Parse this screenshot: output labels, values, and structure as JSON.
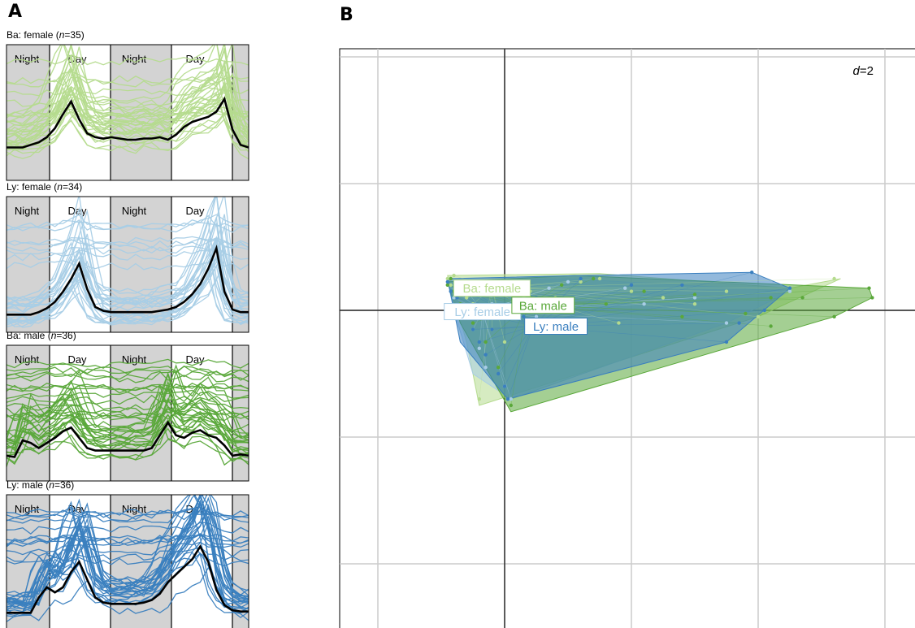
{
  "panels": {
    "a": "A",
    "b": "B"
  },
  "colors": {
    "ba_female": "#b5db8e",
    "ly_female": "#a8cde6",
    "ba_male": "#5aa83a",
    "ly_male": "#3a7fbf",
    "night_fill": "#d3d3d3",
    "mean_line": "#000000",
    "grid": "#cccccc"
  },
  "chart_data": [
    {
      "type": "line",
      "panel": "A",
      "phase_labels": [
        "Night",
        "Day",
        "Night",
        "Day"
      ],
      "subplots": [
        {
          "id": "ba_female",
          "title_prefix": "Ba: female (",
          "n_label": "n",
          "title_suffix": "=35)",
          "color": "#b5db8e",
          "n_lines": 35,
          "mean_profile": [
            0.22,
            0.22,
            0.22,
            0.24,
            0.26,
            0.3,
            0.37,
            0.48,
            0.58,
            0.44,
            0.33,
            0.3,
            0.29,
            0.3,
            0.29,
            0.28,
            0.28,
            0.29,
            0.29,
            0.3,
            0.28,
            0.32,
            0.38,
            0.42,
            0.44,
            0.46,
            0.5,
            0.6,
            0.36,
            0.24,
            0.22
          ]
        },
        {
          "id": "ly_female",
          "title_prefix": "Ly: female (",
          "n_label": "n",
          "title_suffix": "=34)",
          "color": "#a8cde6",
          "n_lines": 34,
          "mean_profile": [
            0.1,
            0.1,
            0.1,
            0.1,
            0.12,
            0.15,
            0.2,
            0.28,
            0.38,
            0.5,
            0.3,
            0.16,
            0.13,
            0.12,
            0.12,
            0.12,
            0.12,
            0.12,
            0.12,
            0.13,
            0.14,
            0.16,
            0.2,
            0.26,
            0.34,
            0.46,
            0.62,
            0.28,
            0.14,
            0.12,
            0.12
          ]
        },
        {
          "id": "ba_male",
          "title_prefix": "Ba: male (",
          "n_label": "n",
          "title_suffix": "=36)",
          "color": "#5aa83a",
          "n_lines": 36,
          "mean_profile": [
            0.16,
            0.15,
            0.28,
            0.26,
            0.22,
            0.26,
            0.3,
            0.35,
            0.38,
            0.3,
            0.22,
            0.2,
            0.2,
            0.2,
            0.2,
            0.2,
            0.2,
            0.2,
            0.22,
            0.32,
            0.42,
            0.32,
            0.3,
            0.34,
            0.36,
            0.32,
            0.3,
            0.24,
            0.16,
            0.17,
            0.16
          ]
        },
        {
          "id": "ly_male",
          "title_prefix": "Ly: male (",
          "n_label": "n",
          "title_suffix": "=36)",
          "color": "#3a7fbf",
          "n_lines": 36,
          "mean_profile": [
            0.1,
            0.1,
            0.1,
            0.1,
            0.22,
            0.3,
            0.26,
            0.3,
            0.42,
            0.5,
            0.36,
            0.22,
            0.18,
            0.17,
            0.17,
            0.17,
            0.17,
            0.18,
            0.2,
            0.25,
            0.34,
            0.4,
            0.46,
            0.52,
            0.62,
            0.5,
            0.28,
            0.16,
            0.12,
            0.11,
            0.11
          ]
        }
      ]
    },
    {
      "type": "scatter",
      "panel": "B",
      "annotation_italic": "d",
      "annotation_rest": "=2",
      "grid": true,
      "xlim": [
        -2,
        6.5
      ],
      "ylim": [
        -6,
        2
      ],
      "groups": [
        {
          "label": "Ba: female",
          "color": "#b5db8e",
          "centroid": [
            -0.2,
            0.35
          ],
          "hull": [
            [
              -0.9,
              0.55
            ],
            [
              1.5,
              0.58
            ],
            [
              4.5,
              0.35
            ],
            [
              5.3,
              0.5
            ],
            [
              4.0,
              -0.1
            ],
            [
              -0.4,
              -1.5
            ],
            [
              -0.6,
              -0.5
            ]
          ],
          "points": [
            [
              -0.9,
              0.5
            ],
            [
              -0.85,
              0.4
            ],
            [
              -0.7,
              0.3
            ],
            [
              -0.6,
              0.2
            ],
            [
              -0.5,
              0.1
            ],
            [
              -0.3,
              -0.1
            ],
            [
              -0.2,
              -0.3
            ],
            [
              0.0,
              -0.5
            ],
            [
              0.2,
              0.1
            ],
            [
              0.4,
              0.3
            ],
            [
              0.8,
              0.2
            ],
            [
              1.2,
              0.45
            ],
            [
              1.5,
              0.5
            ],
            [
              2.0,
              0.3
            ],
            [
              3.0,
              0.1
            ],
            [
              4.0,
              -0.1
            ],
            [
              4.5,
              0.35
            ],
            [
              5.2,
              0.5
            ],
            [
              -0.8,
              0.55
            ],
            [
              -0.4,
              -1.4
            ],
            [
              0.6,
              0.0
            ],
            [
              2.5,
              0.2
            ],
            [
              3.5,
              0.3
            ],
            [
              1.8,
              -0.2
            ],
            [
              -0.1,
              0.0
            ]
          ]
        },
        {
          "label": "Ly: female",
          "color": "#a8cde6",
          "centroid": [
            -0.35,
            -0.02
          ],
          "hull": [
            [
              -0.9,
              0.45
            ],
            [
              1.0,
              0.5
            ],
            [
              4.5,
              0.3
            ],
            [
              3.5,
              -0.2
            ],
            [
              0.1,
              -1.4
            ],
            [
              -0.5,
              -1.0
            ],
            [
              -0.8,
              0.0
            ]
          ],
          "points": [
            [
              -0.9,
              0.4
            ],
            [
              -0.8,
              0.2
            ],
            [
              -0.7,
              0.1
            ],
            [
              -0.6,
              -0.1
            ],
            [
              -0.5,
              -0.3
            ],
            [
              -0.4,
              -0.6
            ],
            [
              -0.3,
              -0.9
            ],
            [
              0.0,
              -1.2
            ],
            [
              0.1,
              -1.4
            ],
            [
              0.3,
              0.2
            ],
            [
              0.7,
              0.35
            ],
            [
              1.0,
              0.45
            ],
            [
              1.9,
              0.35
            ],
            [
              3.0,
              0.2
            ],
            [
              4.5,
              0.3
            ],
            [
              3.5,
              -0.2
            ],
            [
              -0.7,
              0.45
            ],
            [
              0.5,
              -0.1
            ],
            [
              2.2,
              0.1
            ],
            [
              -0.2,
              0.1
            ]
          ]
        },
        {
          "label": "Ba: male",
          "color": "#5aa83a",
          "centroid": [
            0.35,
            0.08
          ],
          "hull": [
            [
              -0.9,
              0.45
            ],
            [
              1.1,
              0.55
            ],
            [
              5.75,
              0.35
            ],
            [
              5.8,
              0.2
            ],
            [
              5.2,
              -0.1
            ],
            [
              0.1,
              -1.6
            ],
            [
              -0.7,
              -0.2
            ]
          ],
          "points": [
            [
              -0.9,
              0.4
            ],
            [
              -0.8,
              0.3
            ],
            [
              -0.7,
              0.1
            ],
            [
              -0.6,
              0.0
            ],
            [
              -0.5,
              -0.2
            ],
            [
              -0.3,
              -0.5
            ],
            [
              -0.1,
              -0.9
            ],
            [
              0.1,
              -1.5
            ],
            [
              0.4,
              0.2
            ],
            [
              0.9,
              0.4
            ],
            [
              1.4,
              0.5
            ],
            [
              2.2,
              0.3
            ],
            [
              3.0,
              0.25
            ],
            [
              4.2,
              0.2
            ],
            [
              4.7,
              0.2
            ],
            [
              5.75,
              0.35
            ],
            [
              5.8,
              0.2
            ],
            [
              5.2,
              -0.1
            ],
            [
              4.2,
              -0.25
            ],
            [
              3.8,
              -0.05
            ],
            [
              -0.85,
              0.5
            ],
            [
              0.2,
              0.05
            ],
            [
              1.6,
              0.1
            ],
            [
              2.8,
              -0.1
            ]
          ]
        },
        {
          "label": "Ly: male",
          "color": "#3a7fbf",
          "centroid": [
            0.45,
            -0.25
          ],
          "hull": [
            [
              -0.9,
              0.5
            ],
            [
              1.2,
              0.55
            ],
            [
              3.9,
              0.6
            ],
            [
              4.5,
              0.35
            ],
            [
              3.5,
              -0.5
            ],
            [
              0.05,
              -1.4
            ],
            [
              -0.7,
              -0.5
            ]
          ],
          "points": [
            [
              -0.9,
              0.45
            ],
            [
              -0.85,
              0.3
            ],
            [
              -0.75,
              0.2
            ],
            [
              -0.6,
              0.0
            ],
            [
              -0.5,
              -0.3
            ],
            [
              -0.4,
              -0.5
            ],
            [
              -0.3,
              -0.7
            ],
            [
              -0.1,
              -1.0
            ],
            [
              0.0,
              -1.2
            ],
            [
              0.05,
              -1.4
            ],
            [
              0.3,
              -0.1
            ],
            [
              0.5,
              0.2
            ],
            [
              1.2,
              0.5
            ],
            [
              2.0,
              0.4
            ],
            [
              2.8,
              0.4
            ],
            [
              3.9,
              0.6
            ],
            [
              4.5,
              0.35
            ],
            [
              3.5,
              -0.5
            ],
            [
              3.7,
              -0.2
            ],
            [
              4.1,
              0.0
            ],
            [
              -0.7,
              0.4
            ],
            [
              1.0,
              0.1
            ],
            [
              -0.2,
              -0.3
            ],
            [
              0.8,
              -0.3
            ]
          ]
        }
      ]
    }
  ]
}
